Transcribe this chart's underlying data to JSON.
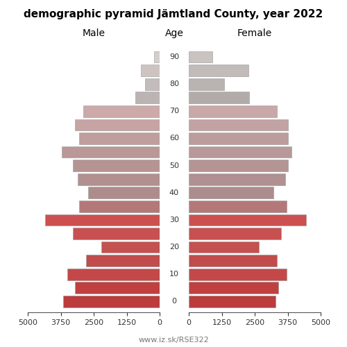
{
  "title": "demographic pyramid Jämtland County, year 2022",
  "ages": [
    90,
    85,
    80,
    75,
    70,
    65,
    60,
    55,
    50,
    45,
    40,
    35,
    30,
    25,
    20,
    15,
    10,
    5,
    0
  ],
  "male": [
    200,
    720,
    560,
    920,
    2900,
    3200,
    3050,
    3700,
    3300,
    3100,
    2700,
    3050,
    4350,
    3300,
    2200,
    2800,
    3500,
    3200,
    3650
  ],
  "female": [
    900,
    2250,
    1350,
    2300,
    3350,
    3750,
    3750,
    3900,
    3750,
    3650,
    3200,
    3700,
    4450,
    3500,
    2650,
    3350,
    3700,
    3400,
    3300
  ],
  "male_colors": [
    "#d5cecc",
    "#cdc4c2",
    "#c4bcba",
    "#bcb4b2",
    "#ccaaaa",
    "#c6a4a4",
    "#c09e9e",
    "#ba9898",
    "#b69494",
    "#b29090",
    "#ae8c8c",
    "#b47878",
    "#cd5050",
    "#c85050",
    "#c45050",
    "#c04c4c",
    "#c44848",
    "#c04040",
    "#bc3c3c"
  ],
  "female_colors": [
    "#c9c3c1",
    "#c1bbb9",
    "#b9b3b1",
    "#b1aba9",
    "#c8a8a8",
    "#c2a2a2",
    "#bc9c9c",
    "#b89898",
    "#b49494",
    "#b09090",
    "#ac8c8c",
    "#b47878",
    "#cd5050",
    "#c85050",
    "#c45050",
    "#c04c4c",
    "#c44848",
    "#c04040",
    "#bc3c3c"
  ],
  "xlim": 5000,
  "xticks": [
    5000,
    3750,
    2500,
    1250,
    0
  ],
  "xticks_female": [
    0,
    1250,
    2500,
    3750,
    5000
  ],
  "age_tick_labels": [
    0,
    10,
    20,
    30,
    40,
    50,
    60,
    70,
    80,
    90
  ],
  "bar_height": 4.3,
  "label_male": "Male",
  "label_female": "Female",
  "label_age": "Age",
  "watermark": "www.iz.sk/RSE322",
  "title_fontsize": 11,
  "header_fontsize": 10,
  "tick_fontsize": 8,
  "age_label_fontsize": 8
}
